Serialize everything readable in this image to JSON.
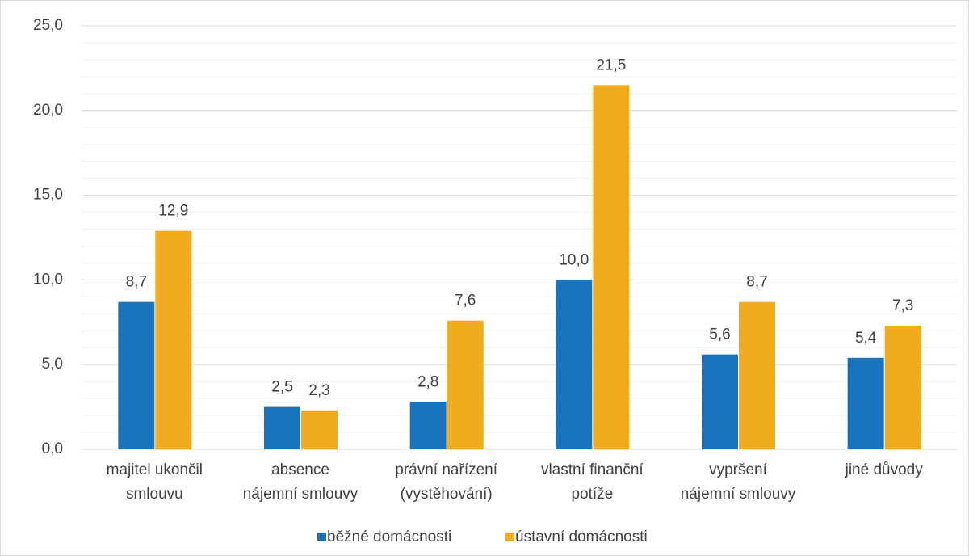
{
  "chart_data": {
    "type": "bar",
    "categories": [
      "majitel ukončil\nsmlouvu",
      "absence\nnájemní smlouvy",
      "právní nařízení\n(vystěhování)",
      "vlastní finanční\npotíže",
      "vypršení\nnájemní smlouvy",
      "jiné důvody"
    ],
    "series": [
      {
        "name": "běžné domácnosti",
        "color": "#1a73bd",
        "values": [
          8.7,
          2.5,
          2.8,
          10.0,
          5.6,
          5.4
        ],
        "value_labels": [
          "8,7",
          "2,5",
          "2,8",
          "10,0",
          "5,6",
          "5,4"
        ]
      },
      {
        "name": "ústavní domácnosti",
        "color": "#f0ab1e",
        "values": [
          12.9,
          2.3,
          7.6,
          21.5,
          8.7,
          7.3
        ],
        "value_labels": [
          "12,9",
          "2,3",
          "7,6",
          "21,5",
          "8,7",
          "7,3"
        ]
      }
    ],
    "ylim": [
      0,
      25
    ],
    "yticks": [
      {
        "value": 0,
        "label": "0,0"
      },
      {
        "value": 5,
        "label": "5,0"
      },
      {
        "value": 10,
        "label": "10,0"
      },
      {
        "value": 15,
        "label": "15,0"
      },
      {
        "value": 20,
        "label": "20,0"
      },
      {
        "value": 25,
        "label": "25,0"
      }
    ],
    "minor_yticks": [
      1,
      2,
      3,
      4,
      6,
      7,
      8,
      9,
      11,
      12,
      13,
      14,
      16,
      17,
      18,
      19,
      21,
      22,
      23,
      24
    ],
    "grid": true,
    "legend": "bottom"
  }
}
